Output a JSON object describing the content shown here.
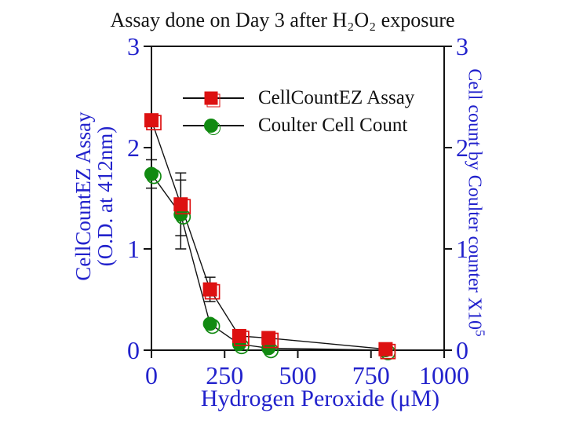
{
  "title": "Assay done on Day 3 after H₂O₂ exposure",
  "axes": {
    "left": {
      "line1": "CellCountEZ Assay",
      "line2": "(O.D. at 412nm)"
    },
    "right": {
      "text": "Cell count by Coulter counter X10",
      "sup": "5"
    },
    "bottom": {
      "label": "Hydrogen Peroxide (μM)"
    }
  },
  "legend": {
    "items": [
      {
        "label": "CellCountEZ Assay",
        "marker": "square",
        "color": "#dd1111"
      },
      {
        "label": "Coulter Cell Count",
        "marker": "circle",
        "color": "#118a11"
      }
    ]
  },
  "colors": {
    "axis_text": "#2222cc",
    "ink": "#111111",
    "red": "#dd1111",
    "green": "#118a11",
    "background": "#ffffff"
  },
  "chart_data": {
    "type": "line",
    "title": "Assay done on Day 3 after H₂O₂ exposure",
    "xlabel": "Hydrogen Peroxide (μM)",
    "ylabel_left": "CellCountEZ Assay (O.D. at 412nm)",
    "ylabel_right": "Cell count by Coulter counter X10^5",
    "xlim": [
      0,
      1000
    ],
    "ylim": [
      0,
      3
    ],
    "x_ticks": [
      0,
      250,
      500,
      750,
      1000
    ],
    "y_ticks": [
      0,
      1,
      2,
      3
    ],
    "grid": false,
    "legend_position": "inside upper-left",
    "series": [
      {
        "name": "CellCountEZ Assay",
        "marker": "square",
        "color": "#dd1111",
        "x": [
          0,
          100,
          200,
          300,
          400,
          800
        ],
        "y": [
          2.27,
          1.44,
          0.6,
          0.14,
          0.12,
          0.01
        ],
        "yerr": [
          0,
          0.31,
          0.12,
          0,
          0,
          0
        ]
      },
      {
        "name": "Coulter Cell Count",
        "marker": "circle",
        "color": "#118a11",
        "x": [
          0,
          100,
          200,
          300,
          400,
          800
        ],
        "y": [
          1.74,
          1.34,
          0.26,
          0.06,
          0.02,
          0.0
        ],
        "yerr": [
          0.14,
          0.34,
          0,
          0,
          0,
          0
        ]
      }
    ]
  }
}
